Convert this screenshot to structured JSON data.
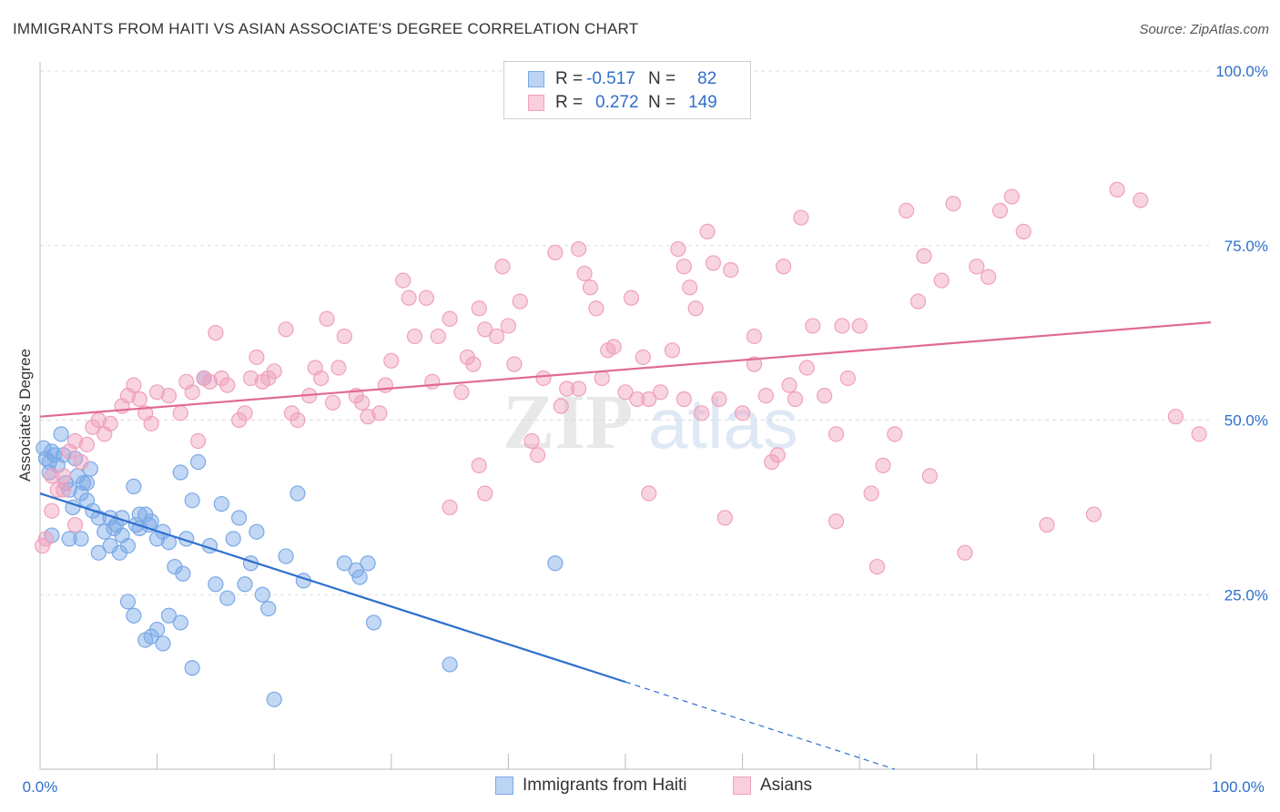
{
  "title": "IMMIGRANTS FROM HAITI VS ASIAN ASSOCIATE'S DEGREE CORRELATION CHART",
  "source": "Source: ZipAtlas.com",
  "watermark": {
    "zip": "ZIP",
    "atlas": "atlas"
  },
  "legend": {
    "series1": {
      "r_label": "R =",
      "r_value": "-0.517",
      "n_label": "N =",
      "n_value": "82"
    },
    "series2": {
      "r_label": "R =",
      "r_value": "0.272",
      "n_label": "N =",
      "n_value": "149"
    }
  },
  "bottom_legend": {
    "series1": "Immigrants from Haiti",
    "series2": "Asians"
  },
  "chart_data": {
    "type": "scatter",
    "title": "IMMIGRANTS FROM HAITI VS ASIAN ASSOCIATE'S DEGREE CORRELATION CHART",
    "xlabel": "",
    "ylabel": "Associate's Degree",
    "xlim": [
      0,
      100
    ],
    "ylim": [
      0,
      100
    ],
    "x_tick_labels": {
      "left": "0.0%",
      "right": "100.0%"
    },
    "y_ticks": [
      {
        "value": 25,
        "label": "25.0%"
      },
      {
        "value": 50,
        "label": "50.0%"
      },
      {
        "value": 75,
        "label": "75.0%"
      },
      {
        "value": 100,
        "label": "100.0%"
      }
    ],
    "colors": {
      "series1": "#7aa9e6",
      "series1_line": "#2d6fcc",
      "series2": "#f0a0bd",
      "series2_line": "#e06a92"
    },
    "series": [
      {
        "name": "Immigrants from Haiti",
        "trend": {
          "x0": 0,
          "y0": 39.5,
          "x1": 50,
          "y1": 12.5,
          "dashed_to_x": 73,
          "dashed_to_y": 0
        },
        "points": [
          [
            0.3,
            46
          ],
          [
            0.5,
            44.5
          ],
          [
            0.8,
            44
          ],
          [
            1,
            45.5
          ],
          [
            1.2,
            45
          ],
          [
            1.5,
            43.5
          ],
          [
            1.8,
            48
          ],
          [
            2,
            45
          ],
          [
            2.2,
            41
          ],
          [
            2.5,
            40
          ],
          [
            2.8,
            37.5
          ],
          [
            3,
            44.5
          ],
          [
            3.2,
            42
          ],
          [
            3.5,
            39.5
          ],
          [
            3.7,
            41
          ],
          [
            4,
            41
          ],
          [
            4.3,
            43
          ],
          [
            4.5,
            37
          ],
          [
            5,
            36
          ],
          [
            5.5,
            34
          ],
          [
            6,
            32
          ],
          [
            6.3,
            34.5
          ],
          [
            6.8,
            31
          ],
          [
            7,
            36
          ],
          [
            7.5,
            32
          ],
          [
            8,
            40.5
          ],
          [
            8.2,
            35
          ],
          [
            8.5,
            34.5
          ],
          [
            9,
            36.5
          ],
          [
            9.3,
            35
          ],
          [
            9.5,
            35.5
          ],
          [
            10,
            33
          ],
          [
            10.5,
            34
          ],
          [
            11,
            32.5
          ],
          [
            11.5,
            29
          ],
          [
            12,
            42.5
          ],
          [
            12.2,
            28
          ],
          [
            12.5,
            33
          ],
          [
            13,
            38.5
          ],
          [
            13.5,
            44
          ],
          [
            14,
            56
          ],
          [
            14.5,
            32
          ],
          [
            15,
            26.5
          ],
          [
            15.5,
            38
          ],
          [
            16,
            24.5
          ],
          [
            16.5,
            33
          ],
          [
            17,
            36
          ],
          [
            17.5,
            26.5
          ],
          [
            18,
            29.5
          ],
          [
            18.5,
            34
          ],
          [
            19,
            25
          ],
          [
            19.5,
            23
          ],
          [
            20,
            10
          ],
          [
            21,
            30.5
          ],
          [
            22,
            39.5
          ],
          [
            22.5,
            27
          ],
          [
            26,
            29.5
          ],
          [
            27,
            28.5
          ],
          [
            27.3,
            27.5
          ],
          [
            28,
            29.5
          ],
          [
            28.5,
            21
          ],
          [
            35,
            15
          ],
          [
            44,
            29.5
          ],
          [
            1,
            33.5
          ],
          [
            2.5,
            33
          ],
          [
            5,
            31
          ],
          [
            7.5,
            24
          ],
          [
            8,
            22
          ],
          [
            9,
            18.5
          ],
          [
            9.5,
            19
          ],
          [
            10,
            20
          ],
          [
            10.5,
            18
          ],
          [
            11,
            22
          ],
          [
            12,
            21
          ],
          [
            13,
            14.5
          ],
          [
            4,
            38.5
          ],
          [
            6,
            36
          ],
          [
            6.5,
            35
          ],
          [
            3.5,
            33
          ],
          [
            7,
            33.5
          ],
          [
            8.5,
            36.5
          ],
          [
            0.8,
            42.5
          ]
        ]
      },
      {
        "name": "Asians",
        "trend": {
          "x0": 0,
          "y0": 50.5,
          "x1": 100,
          "y1": 64
        },
        "points": [
          [
            0.2,
            32
          ],
          [
            0.5,
            33
          ],
          [
            1,
            37
          ],
          [
            1.5,
            40
          ],
          [
            2,
            42
          ],
          [
            2.5,
            45.5
          ],
          [
            3,
            47
          ],
          [
            3.5,
            44
          ],
          [
            4,
            46.5
          ],
          [
            4.5,
            49
          ],
          [
            5,
            50
          ],
          [
            5.5,
            48
          ],
          [
            6,
            49.5
          ],
          [
            7,
            52
          ],
          [
            7.5,
            53.5
          ],
          [
            8,
            55
          ],
          [
            8.5,
            53
          ],
          [
            9,
            51
          ],
          [
            9.5,
            49.5
          ],
          [
            10,
            54
          ],
          [
            11,
            53.5
          ],
          [
            12,
            51
          ],
          [
            12.5,
            55.5
          ],
          [
            13,
            54
          ],
          [
            13.5,
            47
          ],
          [
            14,
            56
          ],
          [
            14.5,
            55.5
          ],
          [
            15,
            62.5
          ],
          [
            15.5,
            56
          ],
          [
            16,
            55
          ],
          [
            17,
            50
          ],
          [
            17.5,
            51
          ],
          [
            18,
            56
          ],
          [
            18.5,
            59
          ],
          [
            19,
            55.5
          ],
          [
            19.5,
            56
          ],
          [
            20,
            57
          ],
          [
            21,
            63
          ],
          [
            21.5,
            51
          ],
          [
            22,
            50
          ],
          [
            23,
            53.5
          ],
          [
            23.5,
            57.5
          ],
          [
            24,
            56
          ],
          [
            24.5,
            64.5
          ],
          [
            25,
            52.5
          ],
          [
            25.5,
            57.5
          ],
          [
            26,
            62
          ],
          [
            27,
            53.5
          ],
          [
            27.5,
            52.5
          ],
          [
            28,
            50.5
          ],
          [
            29,
            51
          ],
          [
            29.5,
            55
          ],
          [
            30,
            58.5
          ],
          [
            31,
            70
          ],
          [
            31.5,
            67.5
          ],
          [
            32,
            62
          ],
          [
            33,
            67.5
          ],
          [
            33.5,
            55.5
          ],
          [
            34,
            62
          ],
          [
            35,
            64.5
          ],
          [
            36,
            54
          ],
          [
            36.5,
            59
          ],
          [
            37,
            58
          ],
          [
            37.5,
            66
          ],
          [
            38,
            63
          ],
          [
            39,
            62
          ],
          [
            39.5,
            72
          ],
          [
            40,
            63.5
          ],
          [
            40.5,
            58
          ],
          [
            41,
            67
          ],
          [
            42,
            47
          ],
          [
            42.5,
            45
          ],
          [
            43,
            56
          ],
          [
            44,
            74
          ],
          [
            44.5,
            52
          ],
          [
            45,
            54.5
          ],
          [
            46,
            74.5
          ],
          [
            46.5,
            71
          ],
          [
            47,
            69
          ],
          [
            47.5,
            66
          ],
          [
            48,
            56
          ],
          [
            48.5,
            60
          ],
          [
            49,
            60.5
          ],
          [
            50,
            54
          ],
          [
            50.5,
            67.5
          ],
          [
            51,
            53
          ],
          [
            51.5,
            59
          ],
          [
            52,
            53
          ],
          [
            53,
            54
          ],
          [
            54,
            60
          ],
          [
            54.5,
            74.5
          ],
          [
            55,
            53
          ],
          [
            55.5,
            69
          ],
          [
            56,
            66
          ],
          [
            56.5,
            51
          ],
          [
            57,
            77
          ],
          [
            57.5,
            72.5
          ],
          [
            58,
            53
          ],
          [
            58.5,
            36
          ],
          [
            59,
            71.5
          ],
          [
            60,
            51
          ],
          [
            61,
            58
          ],
          [
            62,
            53.5
          ],
          [
            62.5,
            44
          ],
          [
            63,
            45
          ],
          [
            64,
            55
          ],
          [
            64.5,
            53
          ],
          [
            65,
            79
          ],
          [
            65.5,
            57.5
          ],
          [
            66,
            63.5
          ],
          [
            67,
            53.5
          ],
          [
            68,
            48
          ],
          [
            68.5,
            63.5
          ],
          [
            69,
            56
          ],
          [
            70,
            63.5
          ],
          [
            71,
            39.5
          ],
          [
            71.5,
            29
          ],
          [
            72,
            43.5
          ],
          [
            73,
            48
          ],
          [
            74,
            80
          ],
          [
            75,
            67
          ],
          [
            75.5,
            73.5
          ],
          [
            76,
            42
          ],
          [
            77,
            70
          ],
          [
            78,
            81
          ],
          [
            79,
            31
          ],
          [
            80,
            72
          ],
          [
            81,
            70.5
          ],
          [
            82,
            80
          ],
          [
            83,
            82
          ],
          [
            84,
            77
          ],
          [
            86,
            35
          ],
          [
            90,
            36.5
          ],
          [
            92,
            83
          ],
          [
            94,
            81.5
          ],
          [
            97,
            50.5
          ],
          [
            99,
            48
          ],
          [
            35,
            37.5
          ],
          [
            38,
            39.5
          ],
          [
            52,
            39.5
          ],
          [
            37.5,
            43.5
          ],
          [
            55,
            72
          ],
          [
            63.5,
            72
          ],
          [
            68,
            35.5
          ],
          [
            61,
            62
          ],
          [
            46,
            54.5
          ],
          [
            2,
            40
          ],
          [
            3,
            35
          ],
          [
            1,
            42
          ]
        ]
      }
    ]
  }
}
